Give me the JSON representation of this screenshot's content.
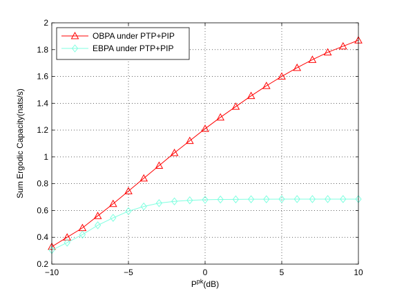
{
  "chart_data": {
    "type": "line",
    "xlabel_main": "P",
    "xlabel_sup": "pk",
    "xlabel_tail": "(dB)",
    "ylabel": "Sum Ergodic Capacity(nats/s)",
    "xlim": [
      -10,
      10
    ],
    "ylim": [
      0.2,
      2
    ],
    "xticks": [
      -10,
      -5,
      0,
      5,
      10
    ],
    "xtick_labels": [
      "−10",
      "−5",
      "0",
      "5",
      "10"
    ],
    "yticks": [
      0.2,
      0.4,
      0.6,
      0.8,
      1,
      1.2,
      1.4,
      1.6,
      1.8,
      2
    ],
    "ytick_labels": [
      "0.2",
      "0.4",
      "0.6",
      "0.8",
      "1",
      "1.2",
      "1.4",
      "1.6",
      "1.8",
      "2"
    ],
    "grid": true,
    "legend_position": "top-left",
    "x": [
      -10,
      -9,
      -8,
      -7,
      -6,
      -5,
      -4,
      -3,
      -2,
      -1,
      0,
      1,
      2,
      3,
      4,
      5,
      6,
      7,
      8,
      9,
      10
    ],
    "series": [
      {
        "name": "OBPA under PTP+PIP",
        "color": "#ff0000",
        "marker": "triangle",
        "values": [
          0.33,
          0.4,
          0.47,
          0.56,
          0.65,
          0.745,
          0.84,
          0.935,
          1.03,
          1.12,
          1.21,
          1.295,
          1.375,
          1.455,
          1.53,
          1.6,
          1.665,
          1.725,
          1.78,
          1.825,
          1.87
        ]
      },
      {
        "name": "EBPA under PTP+PIP",
        "color": "#7fffe0",
        "marker": "diamond",
        "values": [
          0.305,
          0.36,
          0.42,
          0.49,
          0.545,
          0.595,
          0.63,
          0.655,
          0.668,
          0.676,
          0.68,
          0.682,
          0.683,
          0.684,
          0.684,
          0.685,
          0.685,
          0.685,
          0.685,
          0.685,
          0.685
        ]
      }
    ]
  }
}
